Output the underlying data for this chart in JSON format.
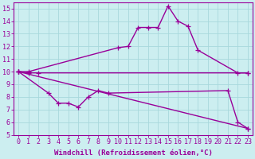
{
  "background_color": "#cceef0",
  "grid_color": "#a8d8dc",
  "line_color": "#990099",
  "marker": "+",
  "markersize": 4,
  "linewidth": 1.0,
  "xlabel": "Windchill (Refroidissement éolien,°C)",
  "xlabel_fontsize": 6.5,
  "tick_fontsize": 6.0,
  "ylim": [
    5,
    15.5
  ],
  "xlim": [
    -0.5,
    23.5
  ],
  "yticks": [
    5,
    6,
    7,
    8,
    9,
    10,
    11,
    12,
    13,
    14,
    15
  ],
  "xticks": [
    0,
    1,
    2,
    3,
    4,
    5,
    6,
    7,
    8,
    9,
    10,
    11,
    12,
    13,
    14,
    15,
    16,
    17,
    18,
    19,
    20,
    21,
    22,
    23
  ],
  "curves": [
    {
      "x": [
        0,
        1,
        10,
        11,
        12,
        13,
        14,
        15,
        16,
        17,
        18,
        22,
        23
      ],
      "y": [
        10,
        10,
        11.9,
        12.0,
        13.5,
        13.5,
        13.5,
        15.2,
        14.0,
        13.6,
        11.7,
        9.9,
        9.9
      ]
    },
    {
      "x": [
        0,
        1,
        2,
        23
      ],
      "y": [
        10,
        9.9,
        9.9,
        9.9
      ]
    },
    {
      "x": [
        0,
        23
      ],
      "y": [
        10,
        5.5
      ]
    },
    {
      "x": [
        0,
        3,
        4,
        5,
        6,
        7,
        8,
        9,
        21,
        22,
        23
      ],
      "y": [
        10,
        8.3,
        7.5,
        7.5,
        7.2,
        8.0,
        8.5,
        8.3,
        8.5,
        6.0,
        5.5
      ]
    }
  ]
}
